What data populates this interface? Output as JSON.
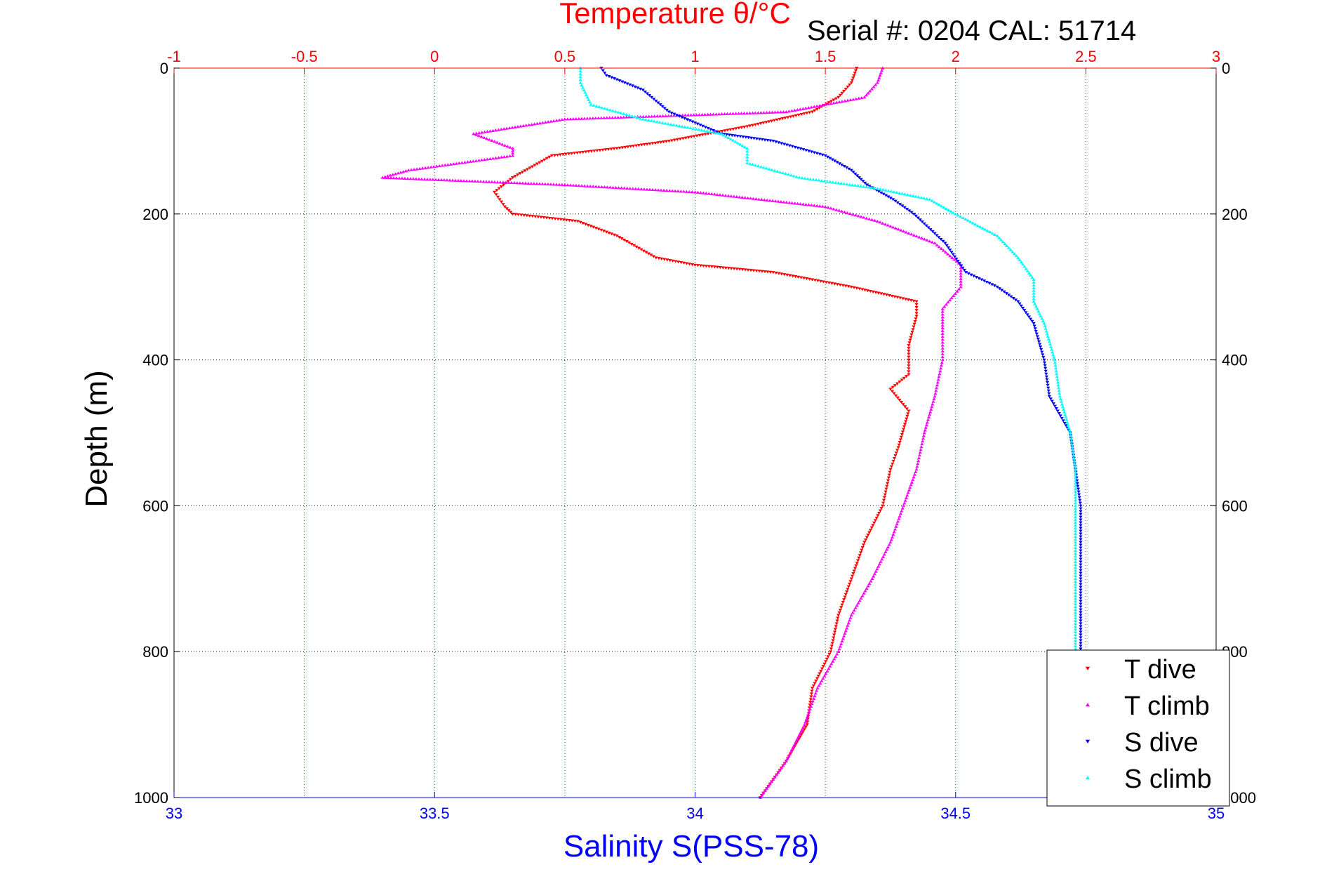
{
  "chart_data": {
    "type": "scatter",
    "title_top": "Temperature θ/°C",
    "title_right": "Serial #: 0204  CAL: 51714",
    "xlabel_bottom": "Salinity S(PSS-78)",
    "ylabel": "Depth (m)",
    "x_bottom": {
      "lim": [
        33,
        35
      ],
      "ticks": [
        "33",
        "33.5",
        "34",
        "34.5",
        "35"
      ],
      "values": [
        33,
        33.5,
        34,
        34.5,
        35
      ],
      "color": "#0000ff"
    },
    "x_top": {
      "lim": [
        -1,
        3
      ],
      "ticks": [
        "-1",
        "-0.5",
        "0",
        "0.5",
        "1",
        "1.5",
        "2",
        "2.5",
        "3"
      ],
      "values": [
        -1,
        -0.5,
        0,
        0.5,
        1,
        1.5,
        2,
        2.5,
        3
      ],
      "color": "#ff0000"
    },
    "y": {
      "lim": [
        0,
        1000
      ],
      "reversed": true,
      "ticks": [
        "0",
        "200",
        "400",
        "600",
        "800",
        "1000"
      ],
      "values": [
        0,
        200,
        400,
        600,
        800,
        1000
      ]
    },
    "grid": true,
    "legend_position": "bottom-right",
    "series": [
      {
        "name": "T dive",
        "axis": "top",
        "color": "#ff0000",
        "marker": "triangle-down",
        "points": [
          [
            1.62,
            0
          ],
          [
            1.6,
            20
          ],
          [
            1.55,
            40
          ],
          [
            1.45,
            60
          ],
          [
            1.2,
            80
          ],
          [
            0.9,
            100
          ],
          [
            0.7,
            110
          ],
          [
            0.45,
            120
          ],
          [
            0.3,
            150
          ],
          [
            0.23,
            170
          ],
          [
            0.27,
            190
          ],
          [
            0.3,
            200
          ],
          [
            0.55,
            210
          ],
          [
            0.7,
            230
          ],
          [
            0.85,
            260
          ],
          [
            1.0,
            270
          ],
          [
            1.3,
            280
          ],
          [
            1.6,
            300
          ],
          [
            1.85,
            320
          ],
          [
            1.85,
            340
          ],
          [
            1.82,
            380
          ],
          [
            1.82,
            420
          ],
          [
            1.75,
            440
          ],
          [
            1.82,
            470
          ],
          [
            1.78,
            520
          ],
          [
            1.75,
            550
          ],
          [
            1.72,
            600
          ],
          [
            1.65,
            650
          ],
          [
            1.6,
            700
          ],
          [
            1.55,
            750
          ],
          [
            1.52,
            800
          ],
          [
            1.45,
            850
          ],
          [
            1.43,
            900
          ],
          [
            1.35,
            950
          ],
          [
            1.25,
            1000
          ]
        ]
      },
      {
        "name": "T climb",
        "axis": "top",
        "color": "#ff00ff",
        "marker": "triangle-up",
        "points": [
          [
            1.72,
            0
          ],
          [
            1.7,
            20
          ],
          [
            1.65,
            40
          ],
          [
            1.35,
            60
          ],
          [
            0.5,
            70
          ],
          [
            0.15,
            90
          ],
          [
            0.3,
            110
          ],
          [
            0.3,
            120
          ],
          [
            -0.1,
            140
          ],
          [
            -0.2,
            150
          ],
          [
            0.5,
            160
          ],
          [
            1.0,
            170
          ],
          [
            1.5,
            190
          ],
          [
            1.7,
            210
          ],
          [
            1.92,
            240
          ],
          [
            2.02,
            270
          ],
          [
            2.02,
            300
          ],
          [
            1.95,
            330
          ],
          [
            1.95,
            360
          ],
          [
            1.95,
            400
          ],
          [
            1.92,
            450
          ],
          [
            1.88,
            500
          ],
          [
            1.85,
            550
          ],
          [
            1.8,
            600
          ],
          [
            1.75,
            650
          ],
          [
            1.68,
            700
          ],
          [
            1.6,
            750
          ],
          [
            1.55,
            800
          ],
          [
            1.47,
            850
          ],
          [
            1.42,
            900
          ],
          [
            1.35,
            950
          ],
          [
            1.25,
            1000
          ]
        ]
      },
      {
        "name": "S dive",
        "axis": "bottom",
        "color": "#0000ff",
        "marker": "triangle-down",
        "points": [
          [
            33.82,
            0
          ],
          [
            33.83,
            10
          ],
          [
            33.9,
            30
          ],
          [
            33.95,
            60
          ],
          [
            34.05,
            90
          ],
          [
            34.15,
            100
          ],
          [
            34.25,
            120
          ],
          [
            34.3,
            140
          ],
          [
            34.33,
            160
          ],
          [
            34.38,
            180
          ],
          [
            34.42,
            200
          ],
          [
            34.48,
            240
          ],
          [
            34.52,
            280
          ],
          [
            34.58,
            300
          ],
          [
            34.62,
            320
          ],
          [
            34.65,
            350
          ],
          [
            34.67,
            400
          ],
          [
            34.68,
            450
          ],
          [
            34.72,
            500
          ],
          [
            34.73,
            550
          ],
          [
            34.74,
            600
          ],
          [
            34.74,
            650
          ],
          [
            34.74,
            700
          ],
          [
            34.74,
            750
          ],
          [
            34.74,
            800
          ],
          [
            34.74,
            850
          ],
          [
            34.74,
            900
          ],
          [
            34.74,
            950
          ],
          [
            34.74,
            1000
          ]
        ]
      },
      {
        "name": "S climb",
        "axis": "bottom",
        "color": "#00ffff",
        "marker": "triangle-up",
        "points": [
          [
            33.78,
            0
          ],
          [
            33.78,
            20
          ],
          [
            33.8,
            50
          ],
          [
            33.9,
            70
          ],
          [
            34.05,
            90
          ],
          [
            34.1,
            110
          ],
          [
            34.1,
            130
          ],
          [
            34.2,
            150
          ],
          [
            34.35,
            165
          ],
          [
            34.45,
            180
          ],
          [
            34.5,
            200
          ],
          [
            34.58,
            230
          ],
          [
            34.62,
            260
          ],
          [
            34.65,
            290
          ],
          [
            34.65,
            320
          ],
          [
            34.67,
            350
          ],
          [
            34.69,
            400
          ],
          [
            34.7,
            450
          ],
          [
            34.72,
            500
          ],
          [
            34.73,
            550
          ],
          [
            34.73,
            600
          ],
          [
            34.73,
            650
          ],
          [
            34.73,
            700
          ],
          [
            34.73,
            750
          ],
          [
            34.73,
            800
          ],
          [
            34.73,
            850
          ],
          [
            34.73,
            900
          ],
          [
            34.73,
            950
          ],
          [
            34.73,
            1000
          ]
        ]
      }
    ]
  }
}
